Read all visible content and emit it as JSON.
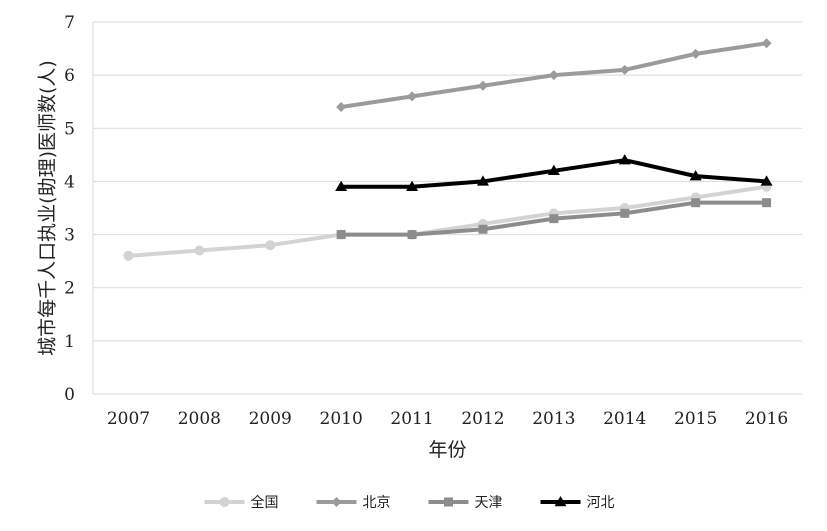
{
  "chart_data": {
    "type": "line",
    "xlabel": "年份",
    "ylabel": "城市每千人口执业(助理)医师数(人)",
    "x": [
      "2007",
      "2008",
      "2009",
      "2010",
      "2011",
      "2012",
      "2013",
      "2014",
      "2015",
      "2016"
    ],
    "ylim": [
      0,
      7
    ],
    "yticks": [
      "0",
      "1",
      "2",
      "3",
      "4",
      "5",
      "6",
      "7"
    ],
    "grid": "horizontal",
    "legend_position": "bottom",
    "series": [
      {
        "name": "全国",
        "color": "#d3d3d3",
        "marker": "circle",
        "values": [
          2.6,
          2.7,
          2.8,
          3.0,
          3.0,
          3.2,
          3.4,
          3.5,
          3.7,
          3.9
        ]
      },
      {
        "name": "北京",
        "color": "#9b9b9b",
        "marker": "diamond",
        "values": [
          null,
          null,
          null,
          5.4,
          5.6,
          5.8,
          6.0,
          6.1,
          6.4,
          6.6
        ]
      },
      {
        "name": "天津",
        "color": "#8c8c8c",
        "marker": "square",
        "values": [
          null,
          null,
          null,
          3.0,
          3.0,
          3.1,
          3.3,
          3.4,
          3.6,
          3.6
        ]
      },
      {
        "name": "河北",
        "color": "#000000",
        "marker": "triangle",
        "values": [
          null,
          null,
          null,
          3.9,
          3.9,
          4.0,
          4.2,
          4.4,
          4.1,
          4.0
        ]
      }
    ]
  }
}
